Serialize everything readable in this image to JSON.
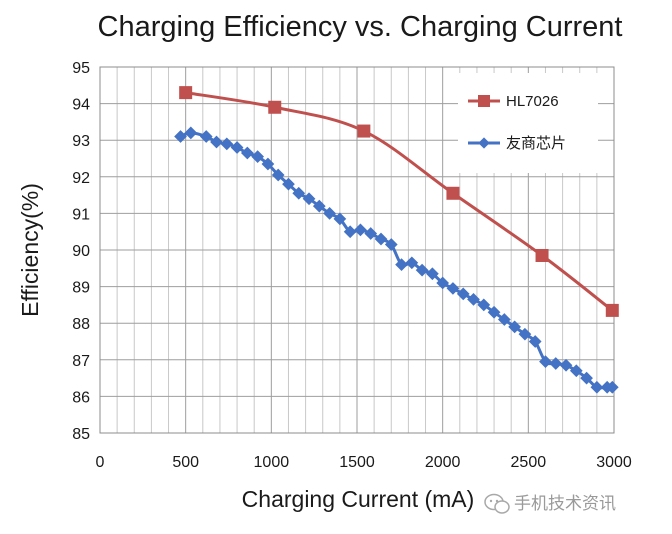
{
  "chart_data": {
    "type": "line",
    "title": "Charging Efficiency vs. Charging Current",
    "xlabel": "Charging Current (mA)",
    "ylabel": "Efficiency(%)",
    "xlim": [
      0,
      3000
    ],
    "ylim": [
      85,
      95
    ],
    "x_ticks": [
      "0",
      "500",
      "1000",
      "1500",
      "2000",
      "2500",
      "3000"
    ],
    "y_ticks": [
      "85",
      "86",
      "87",
      "88",
      "89",
      "90",
      "91",
      "92",
      "93",
      "94",
      "95"
    ],
    "grid": true,
    "legend_position": "top-right",
    "series": [
      {
        "name": "HL7026",
        "color": "#c0504d",
        "marker": "square",
        "x": [
          500,
          1020,
          1540,
          2060,
          2580,
          2990
        ],
        "y": [
          94.3,
          93.9,
          93.25,
          91.55,
          89.85,
          88.35
        ]
      },
      {
        "name": "友商芯片",
        "color": "#4472c4",
        "marker": "diamond",
        "x": [
          470,
          530,
          620,
          680,
          740,
          800,
          860,
          920,
          980,
          1040,
          1100,
          1160,
          1220,
          1280,
          1340,
          1400,
          1460,
          1520,
          1580,
          1640,
          1700,
          1760,
          1820,
          1880,
          1940,
          2000,
          2060,
          2120,
          2180,
          2240,
          2300,
          2360,
          2420,
          2480,
          2540,
          2600,
          2660,
          2720,
          2780,
          2840,
          2900,
          2960,
          2990
        ],
        "y": [
          93.1,
          93.2,
          93.1,
          92.95,
          92.9,
          92.8,
          92.65,
          92.55,
          92.35,
          92.05,
          91.8,
          91.55,
          91.4,
          91.2,
          91.0,
          90.85,
          90.5,
          90.55,
          90.45,
          90.3,
          90.15,
          89.6,
          89.65,
          89.45,
          89.35,
          89.1,
          88.95,
          88.8,
          88.65,
          88.5,
          88.3,
          88.1,
          87.9,
          87.7,
          87.5,
          86.95,
          86.9,
          86.85,
          86.7,
          86.5,
          86.25,
          86.25,
          86.25
        ]
      }
    ]
  },
  "watermark": {
    "text": "手机技术资讯",
    "icon": "wechat-icon"
  }
}
